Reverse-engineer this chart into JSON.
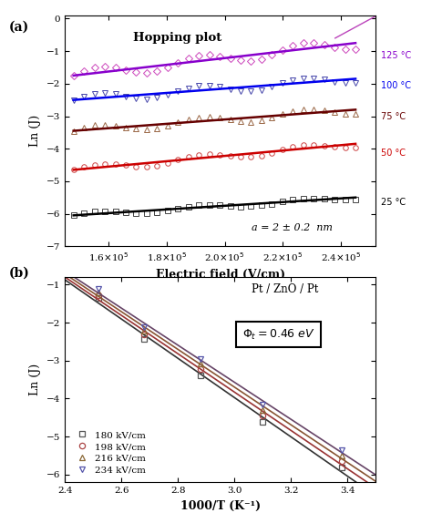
{
  "panel_a": {
    "title": "Hopping plot",
    "xlabel": "Electric field (V/cm)",
    "ylabel": "Ln (J)",
    "xlim": [
      145000.0,
      252000.0
    ],
    "ylim": [
      -7,
      0.1
    ],
    "yticks": [
      0,
      -1,
      -2,
      -3,
      -4,
      -5,
      -6,
      -7
    ],
    "annotation": "a = 2 ± 0.2  nm",
    "series": [
      {
        "label": "125 °C",
        "line_color": "#8800CC",
        "scatter_color": "#CC44BB",
        "marker": "D",
        "y_start": -1.75,
        "y_end": -0.75,
        "scatter_amp": 0.18,
        "scatter_freq": 5.5
      },
      {
        "label": "100 °C",
        "line_color": "#0000EE",
        "scatter_color": "#4444AA",
        "marker": "v",
        "y_start": -2.5,
        "y_end": -1.85,
        "scatter_amp": 0.14,
        "scatter_freq": 5.5
      },
      {
        "label": "75 °C",
        "line_color": "#660000",
        "scatter_color": "#996644",
        "marker": "^",
        "y_start": -3.45,
        "y_end": -2.8,
        "scatter_amp": 0.13,
        "scatter_freq": 5.5
      },
      {
        "label": "50 °C",
        "line_color": "#CC0000",
        "scatter_color": "#CC4444",
        "marker": "o",
        "y_start": -4.65,
        "y_end": -3.85,
        "scatter_amp": 0.11,
        "scatter_freq": 5.5
      },
      {
        "label": "25 °C",
        "line_color": "#000000",
        "scatter_color": "#444444",
        "marker": "s",
        "y_start": -6.05,
        "y_end": -5.5,
        "scatter_amp": 0.07,
        "scatter_freq": 5.5
      }
    ],
    "extra_line_x": [
      238000.0,
      252000.0
    ],
    "extra_line_y": [
      -0.6,
      0.08
    ],
    "extra_line_color": "#BB44BB"
  },
  "panel_b": {
    "xlabel": "1000/T (K⁻¹)",
    "ylabel": "Ln (J)",
    "xlim": [
      2.4,
      3.5
    ],
    "ylim": [
      -6.2,
      -0.8
    ],
    "yticks": [
      -1,
      -2,
      -3,
      -4,
      -5,
      -6
    ],
    "xticks": [
      2.4,
      2.6,
      2.8,
      3.0,
      3.2,
      3.4
    ],
    "text_top": "Pt / ZnO / Pt",
    "box_label": "Φₜ = 0.46  eV",
    "line_color": "#993333",
    "series": [
      {
        "label": "180 kV/cm",
        "marker": "s",
        "color": "#555555",
        "x_data": [
          2.52,
          2.68,
          2.88,
          3.1,
          3.38
        ],
        "y_data": [
          -1.35,
          -2.42,
          -3.38,
          -4.62,
          -5.82
        ]
      },
      {
        "label": "198 kV/cm",
        "marker": "o",
        "color": "#AA4444",
        "x_data": [
          2.52,
          2.68,
          2.88,
          3.1,
          3.38
        ],
        "y_data": [
          -1.28,
          -2.32,
          -3.22,
          -4.45,
          -5.65
        ]
      },
      {
        "label": "216 kV/cm",
        "marker": "^",
        "color": "#886633",
        "x_data": [
          2.52,
          2.68,
          2.88,
          3.1,
          3.38
        ],
        "y_data": [
          -1.2,
          -2.22,
          -3.08,
          -4.3,
          -5.5
        ]
      },
      {
        "label": "234 kV/cm",
        "marker": "v",
        "color": "#5555AA",
        "x_data": [
          2.52,
          2.68,
          2.88,
          3.1,
          3.38
        ],
        "y_data": [
          -1.12,
          -2.12,
          -2.96,
          -4.15,
          -5.35
        ]
      }
    ]
  }
}
